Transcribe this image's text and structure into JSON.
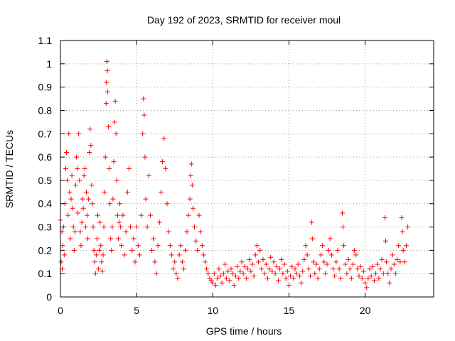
{
  "chart_data": {
    "type": "scatter",
    "title": "Day 192 of 2023, SRMTID for receiver moul",
    "xlabel": "GPS time / hours",
    "ylabel": "SRMTID / TECUs",
    "xlim": [
      0,
      24.5
    ],
    "ylim": [
      0,
      1.1
    ],
    "xticks": [
      0,
      5,
      10,
      15,
      20
    ],
    "xtick_labels": [
      "0",
      "5",
      "10",
      "15",
      "20"
    ],
    "yticks": [
      0,
      0.1,
      0.2,
      0.3,
      0.4,
      0.5,
      0.6,
      0.7,
      0.8,
      0.9,
      1,
      1.1
    ],
    "ytick_labels": [
      "0",
      "0.1",
      "0.2",
      "0.3",
      "0.4",
      "0.5",
      "0.6",
      "0.7",
      "0.8",
      "0.9",
      "1",
      "1.1"
    ],
    "grid": true,
    "marker": "+",
    "color": "#ff0000",
    "series": [
      {
        "name": "SRMTID",
        "points": [
          [
            0.0,
            0.33
          ],
          [
            0.05,
            0.15
          ],
          [
            0.1,
            0.28
          ],
          [
            0.12,
            0.12
          ],
          [
            0.15,
            0.22
          ],
          [
            0.2,
            0.3
          ],
          [
            0.25,
            0.18
          ],
          [
            0.3,
            0.4
          ],
          [
            0.35,
            0.55
          ],
          [
            0.4,
            0.62
          ],
          [
            0.45,
            0.5
          ],
          [
            0.5,
            0.35
          ],
          [
            0.55,
            0.7
          ],
          [
            0.6,
            0.45
          ],
          [
            0.65,
            0.25
          ],
          [
            0.7,
            0.42
          ],
          [
            0.75,
            0.52
          ],
          [
            0.8,
            0.38
          ],
          [
            0.85,
            0.3
          ],
          [
            0.9,
            0.2
          ],
          [
            0.95,
            0.28
          ],
          [
            1.0,
            0.48
          ],
          [
            1.05,
            0.6
          ],
          [
            1.1,
            0.55
          ],
          [
            1.15,
            0.36
          ],
          [
            1.2,
            0.7
          ],
          [
            1.25,
            0.5
          ],
          [
            1.3,
            0.28
          ],
          [
            1.35,
            0.22
          ],
          [
            1.4,
            0.32
          ],
          [
            1.45,
            0.42
          ],
          [
            1.5,
            0.38
          ],
          [
            1.55,
            0.52
          ],
          [
            1.6,
            0.55
          ],
          [
            1.65,
            0.3
          ],
          [
            1.7,
            0.45
          ],
          [
            1.75,
            0.35
          ],
          [
            1.8,
            0.25
          ],
          [
            1.85,
            0.42
          ],
          [
            1.9,
            0.62
          ],
          [
            1.95,
            0.72
          ],
          [
            2.0,
            0.65
          ],
          [
            2.05,
            0.48
          ],
          [
            2.1,
            0.4
          ],
          [
            2.15,
            0.3
          ],
          [
            2.2,
            0.2
          ],
          [
            2.25,
            0.15
          ],
          [
            2.3,
            0.1
          ],
          [
            2.35,
            0.18
          ],
          [
            2.4,
            0.25
          ],
          [
            2.45,
            0.35
          ],
          [
            2.5,
            0.12
          ],
          [
            2.55,
            0.2
          ],
          [
            2.6,
            0.32
          ],
          [
            2.65,
            0.22
          ],
          [
            2.7,
            0.15
          ],
          [
            2.75,
            0.11
          ],
          [
            2.8,
            0.18
          ],
          [
            2.85,
            0.3
          ],
          [
            2.9,
            0.45
          ],
          [
            2.95,
            0.6
          ],
          [
            3.0,
            0.83
          ],
          [
            3.02,
            0.92
          ],
          [
            3.05,
            1.01
          ],
          [
            3.08,
            0.97
          ],
          [
            3.1,
            0.88
          ],
          [
            3.15,
            0.73
          ],
          [
            3.2,
            0.55
          ],
          [
            3.25,
            0.4
          ],
          [
            3.3,
            0.25
          ],
          [
            3.35,
            0.2
          ],
          [
            3.4,
            0.3
          ],
          [
            3.45,
            0.42
          ],
          [
            3.5,
            0.58
          ],
          [
            3.55,
            0.75
          ],
          [
            3.6,
            0.84
          ],
          [
            3.65,
            0.7
          ],
          [
            3.7,
            0.5
          ],
          [
            3.75,
            0.35
          ],
          [
            3.8,
            0.25
          ],
          [
            3.85,
            0.32
          ],
          [
            3.9,
            0.4
          ],
          [
            3.95,
            0.3
          ],
          [
            4.0,
            0.22
          ],
          [
            4.1,
            0.35
          ],
          [
            4.2,
            0.18
          ],
          [
            4.3,
            0.28
          ],
          [
            4.4,
            0.45
          ],
          [
            4.5,
            0.55
          ],
          [
            4.6,
            0.3
          ],
          [
            4.7,
            0.2
          ],
          [
            4.8,
            0.25
          ],
          [
            4.9,
            0.15
          ],
          [
            5.0,
            0.3
          ],
          [
            5.1,
            0.22
          ],
          [
            5.2,
            0.18
          ],
          [
            5.3,
            0.35
          ],
          [
            5.4,
            0.7
          ],
          [
            5.45,
            0.85
          ],
          [
            5.5,
            0.78
          ],
          [
            5.55,
            0.6
          ],
          [
            5.6,
            0.42
          ],
          [
            5.7,
            0.3
          ],
          [
            5.8,
            0.52
          ],
          [
            5.9,
            0.35
          ],
          [
            6.0,
            0.2
          ],
          [
            6.1,
            0.25
          ],
          [
            6.2,
            0.15
          ],
          [
            6.3,
            0.1
          ],
          [
            6.4,
            0.22
          ],
          [
            6.5,
            0.32
          ],
          [
            6.6,
            0.45
          ],
          [
            6.7,
            0.58
          ],
          [
            6.8,
            0.68
          ],
          [
            6.9,
            0.55
          ],
          [
            7.0,
            0.4
          ],
          [
            7.1,
            0.28
          ],
          [
            7.2,
            0.22
          ],
          [
            7.3,
            0.18
          ],
          [
            7.4,
            0.12
          ],
          [
            7.5,
            0.15
          ],
          [
            7.6,
            0.1
          ],
          [
            7.7,
            0.08
          ],
          [
            7.8,
            0.18
          ],
          [
            7.9,
            0.22
          ],
          [
            8.0,
            0.15
          ],
          [
            8.1,
            0.12
          ],
          [
            8.2,
            0.2
          ],
          [
            8.3,
            0.28
          ],
          [
            8.4,
            0.35
          ],
          [
            8.5,
            0.42
          ],
          [
            8.55,
            0.52
          ],
          [
            8.6,
            0.57
          ],
          [
            8.65,
            0.48
          ],
          [
            8.7,
            0.38
          ],
          [
            8.8,
            0.3
          ],
          [
            8.9,
            0.24
          ],
          [
            9.0,
            0.2
          ],
          [
            9.1,
            0.35
          ],
          [
            9.2,
            0.28
          ],
          [
            9.3,
            0.22
          ],
          [
            9.4,
            0.18
          ],
          [
            9.5,
            0.15
          ],
          [
            9.6,
            0.12
          ],
          [
            9.7,
            0.1
          ],
          [
            9.8,
            0.08
          ],
          [
            9.9,
            0.07
          ],
          [
            10.0,
            0.06
          ],
          [
            10.1,
            0.1
          ],
          [
            10.2,
            0.05
          ],
          [
            10.3,
            0.08
          ],
          [
            10.4,
            0.12
          ],
          [
            10.5,
            0.09
          ],
          [
            10.6,
            0.06
          ],
          [
            10.7,
            0.1
          ],
          [
            10.8,
            0.14
          ],
          [
            10.9,
            0.08
          ],
          [
            11.0,
            0.11
          ],
          [
            11.1,
            0.07
          ],
          [
            11.2,
            0.12
          ],
          [
            11.3,
            0.1
          ],
          [
            11.4,
            0.05
          ],
          [
            11.5,
            0.09
          ],
          [
            11.6,
            0.13
          ],
          [
            11.7,
            0.08
          ],
          [
            11.8,
            0.11
          ],
          [
            11.9,
            0.15
          ],
          [
            12.0,
            0.1
          ],
          [
            12.1,
            0.13
          ],
          [
            12.2,
            0.08
          ],
          [
            12.3,
            0.12
          ],
          [
            12.4,
            0.16
          ],
          [
            12.5,
            0.11
          ],
          [
            12.6,
            0.14
          ],
          [
            12.7,
            0.09
          ],
          [
            12.8,
            0.18
          ],
          [
            12.9,
            0.22
          ],
          [
            13.0,
            0.15
          ],
          [
            13.1,
            0.2
          ],
          [
            13.2,
            0.12
          ],
          [
            13.3,
            0.16
          ],
          [
            13.4,
            0.1
          ],
          [
            13.5,
            0.14
          ],
          [
            13.6,
            0.08
          ],
          [
            13.7,
            0.12
          ],
          [
            13.8,
            0.17
          ],
          [
            13.9,
            0.11
          ],
          [
            14.0,
            0.15
          ],
          [
            14.1,
            0.1
          ],
          [
            14.2,
            0.13
          ],
          [
            14.3,
            0.07
          ],
          [
            14.4,
            0.12
          ],
          [
            14.5,
            0.16
          ],
          [
            14.6,
            0.1
          ],
          [
            14.7,
            0.14
          ],
          [
            14.8,
            0.08
          ],
          [
            14.9,
            0.11
          ],
          [
            15.0,
            0.05
          ],
          [
            15.1,
            0.09
          ],
          [
            15.2,
            0.13
          ],
          [
            15.3,
            0.08
          ],
          [
            15.4,
            0.12
          ],
          [
            15.5,
            0.1
          ],
          [
            15.6,
            0.14
          ],
          [
            15.7,
            0.09
          ],
          [
            15.8,
            0.06
          ],
          [
            15.9,
            0.11
          ],
          [
            16.0,
            0.16
          ],
          [
            16.1,
            0.22
          ],
          [
            16.2,
            0.18
          ],
          [
            16.3,
            0.12
          ],
          [
            16.4,
            0.09
          ],
          [
            16.5,
            0.32
          ],
          [
            16.55,
            0.25
          ],
          [
            16.6,
            0.15
          ],
          [
            16.7,
            0.1
          ],
          [
            16.8,
            0.14
          ],
          [
            16.9,
            0.08
          ],
          [
            17.0,
            0.12
          ],
          [
            17.1,
            0.18
          ],
          [
            17.2,
            0.22
          ],
          [
            17.3,
            0.15
          ],
          [
            17.4,
            0.1
          ],
          [
            17.5,
            0.14
          ],
          [
            17.6,
            0.2
          ],
          [
            17.7,
            0.25
          ],
          [
            17.8,
            0.18
          ],
          [
            17.9,
            0.12
          ],
          [
            18.0,
            0.09
          ],
          [
            18.1,
            0.15
          ],
          [
            18.2,
            0.2
          ],
          [
            18.3,
            0.12
          ],
          [
            18.4,
            0.08
          ],
          [
            18.5,
            0.36
          ],
          [
            18.55,
            0.3
          ],
          [
            18.6,
            0.22
          ],
          [
            18.7,
            0.14
          ],
          [
            18.8,
            0.1
          ],
          [
            18.9,
            0.16
          ],
          [
            19.0,
            0.12
          ],
          [
            19.1,
            0.08
          ],
          [
            19.2,
            0.14
          ],
          [
            19.3,
            0.2
          ],
          [
            19.4,
            0.18
          ],
          [
            19.5,
            0.12
          ],
          [
            19.6,
            0.09
          ],
          [
            19.7,
            0.13
          ],
          [
            19.8,
            0.08
          ],
          [
            19.9,
            0.11
          ],
          [
            20.0,
            0.06
          ],
          [
            20.1,
            0.04
          ],
          [
            20.2,
            0.08
          ],
          [
            20.3,
            0.12
          ],
          [
            20.4,
            0.09
          ],
          [
            20.5,
            0.13
          ],
          [
            20.6,
            0.07
          ],
          [
            20.7,
            0.1
          ],
          [
            20.8,
            0.14
          ],
          [
            20.9,
            0.08
          ],
          [
            21.0,
            0.12
          ],
          [
            21.1,
            0.16
          ],
          [
            21.2,
            0.1
          ],
          [
            21.3,
            0.34
          ],
          [
            21.35,
            0.24
          ],
          [
            21.4,
            0.15
          ],
          [
            21.5,
            0.1
          ],
          [
            21.6,
            0.06
          ],
          [
            21.7,
            0.12
          ],
          [
            21.8,
            0.18
          ],
          [
            21.9,
            0.14
          ],
          [
            22.0,
            0.1
          ],
          [
            22.1,
            0.16
          ],
          [
            22.2,
            0.22
          ],
          [
            22.3,
            0.15
          ],
          [
            22.4,
            0.34
          ],
          [
            22.45,
            0.28
          ],
          [
            22.5,
            0.2
          ],
          [
            22.6,
            0.15
          ],
          [
            22.7,
            0.22
          ],
          [
            22.8,
            0.3
          ]
        ]
      }
    ]
  }
}
